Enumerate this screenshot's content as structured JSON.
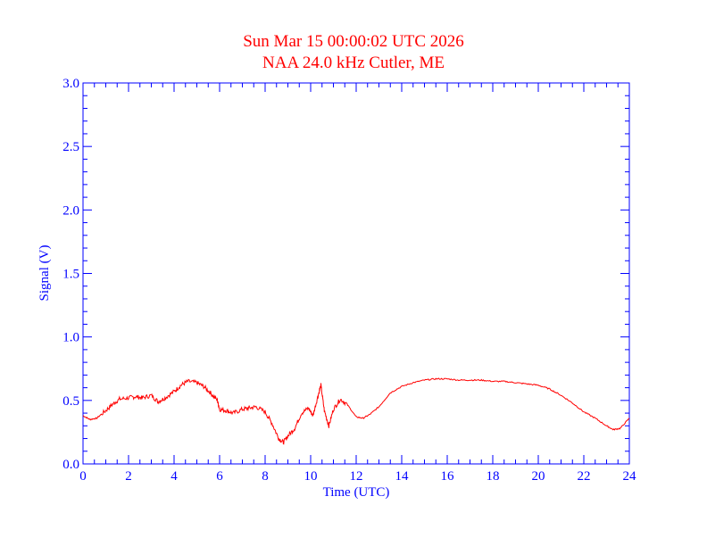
{
  "chart_data": {
    "type": "line",
    "title": "Sun Mar 15 00:00:02 UTC 2026",
    "subtitle": "NAA 24.0 kHz Cutler, ME",
    "xlabel": "Time (UTC)",
    "ylabel": "Signal (V)",
    "xlim": [
      0,
      24
    ],
    "ylim": [
      0.0,
      3.0
    ],
    "x_ticks": [
      "0",
      "2",
      "4",
      "6",
      "8",
      "10",
      "12",
      "14",
      "16",
      "18",
      "20",
      "22",
      "24"
    ],
    "y_ticks": [
      "0.0",
      "0.5",
      "1.0",
      "1.5",
      "2.0",
      "2.5",
      "3.0"
    ],
    "grid": false,
    "colors": {
      "title": "#ff0000",
      "axis": "#0000ff",
      "series": "#ff0000"
    },
    "series": [
      {
        "x": [
          0.0,
          0.3,
          0.6,
          1.0,
          1.3,
          1.6,
          2.0,
          2.3,
          2.6,
          3.0,
          3.3,
          3.6,
          4.0,
          4.3,
          4.6,
          5.0,
          5.3,
          5.6,
          5.9,
          6.0,
          6.3,
          6.6,
          7.0,
          7.3,
          7.6,
          8.0,
          8.3,
          8.6,
          8.8,
          9.0,
          9.3,
          9.6,
          9.9,
          10.1,
          10.3,
          10.45,
          10.6,
          10.8,
          11.0,
          11.3,
          11.6,
          12.0,
          12.3,
          12.6,
          13.0,
          13.5,
          14.0,
          14.5,
          15.0,
          15.5,
          16.0,
          16.5,
          17.0,
          17.5,
          18.0,
          18.5,
          19.0,
          19.5,
          20.0,
          20.5,
          21.0,
          21.5,
          22.0,
          22.5,
          23.0,
          23.3,
          23.6,
          24.0
        ],
        "y": [
          0.38,
          0.35,
          0.36,
          0.42,
          0.47,
          0.51,
          0.52,
          0.53,
          0.52,
          0.54,
          0.49,
          0.52,
          0.57,
          0.62,
          0.65,
          0.64,
          0.61,
          0.56,
          0.5,
          0.43,
          0.42,
          0.4,
          0.43,
          0.44,
          0.45,
          0.41,
          0.32,
          0.2,
          0.17,
          0.22,
          0.28,
          0.4,
          0.44,
          0.38,
          0.52,
          0.62,
          0.42,
          0.3,
          0.43,
          0.51,
          0.47,
          0.37,
          0.36,
          0.39,
          0.45,
          0.56,
          0.61,
          0.64,
          0.66,
          0.67,
          0.67,
          0.66,
          0.66,
          0.66,
          0.65,
          0.65,
          0.64,
          0.63,
          0.62,
          0.59,
          0.54,
          0.48,
          0.41,
          0.36,
          0.3,
          0.27,
          0.28,
          0.36
        ]
      }
    ]
  }
}
